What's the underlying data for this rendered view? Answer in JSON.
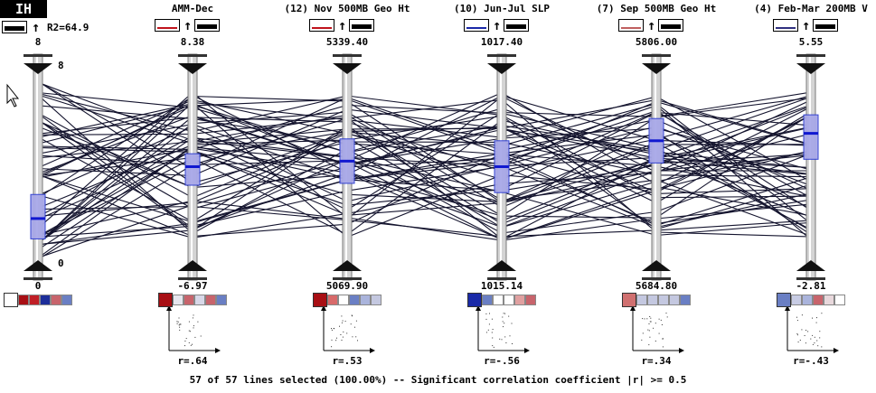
{
  "app": {
    "corner_label": "IH",
    "r2_label": "R2=64.9"
  },
  "axes": [
    {
      "name": "",
      "max": "8",
      "min": "0",
      "inner_max": "8",
      "inner_min": "0",
      "r": "",
      "swatch": "black",
      "box_top": 0.65,
      "box_bottom": 0.89,
      "median": 0.78,
      "chips": [
        "#ffffff",
        "#a80f14",
        "#c01f26",
        "#1d2e9a",
        "#c8646c",
        "#6a7fc4"
      ]
    },
    {
      "name": "AMM-Dec",
      "max": "8.38",
      "min": "-6.97",
      "r": "r=.64",
      "swatch": "red",
      "box_top": 0.43,
      "box_bottom": 0.6,
      "median": 0.5,
      "chips": [
        "#a80f14",
        "#e6e6ee",
        "#c8646c",
        "#d8d8e8",
        "#c8646c",
        "#6a7fc4"
      ]
    },
    {
      "name": "(12) Nov 500MB Geo Ht",
      "max": "5339.40",
      "min": "5069.90",
      "r": "r=.53",
      "swatch": "red",
      "box_top": 0.35,
      "box_bottom": 0.59,
      "median": 0.47,
      "chips": [
        "#a80f14",
        "#d86a6a",
        "#ffffff",
        "#6a7fc4",
        "#aab4dc",
        "#c4c8e0"
      ]
    },
    {
      "name": "(10) Jun-Jul SLP",
      "max": "1017.40",
      "min": "1015.14",
      "r": "r=-.56",
      "swatch": "blue",
      "box_top": 0.36,
      "box_bottom": 0.64,
      "median": 0.5,
      "chips": [
        "#1a2aa8",
        "#6a7fc4",
        "#ffffff",
        "#ffffff",
        "#e0a0a0",
        "#c8646c"
      ]
    },
    {
      "name": "(7) Sep 500MB Geo Ht",
      "max": "5806.00",
      "min": "5684.80",
      "r": "r=.34",
      "swatch": "rose",
      "box_top": 0.24,
      "box_bottom": 0.48,
      "median": 0.36,
      "chips": [
        "#d07070",
        "#c4c8e0",
        "#c4c8e0",
        "#c4c8e0",
        "#c4c8e0",
        "#6a7fc4"
      ]
    },
    {
      "name": "(4) Feb-Mar 200MB V",
      "max": "5.55",
      "min": "-2.81",
      "r": "r=-.43",
      "swatch": "navy",
      "box_top": 0.22,
      "box_bottom": 0.46,
      "median": 0.32,
      "chips": [
        "#6a7fc4",
        "#c8cce4",
        "#aab4dc",
        "#c8646c",
        "#e8d8dc",
        "#ffffff"
      ]
    }
  ],
  "status": {
    "footer_text": "57 of 57 lines selected (100.00%)  -- Significant correlation coefficient  |r| >= 0.5"
  }
}
